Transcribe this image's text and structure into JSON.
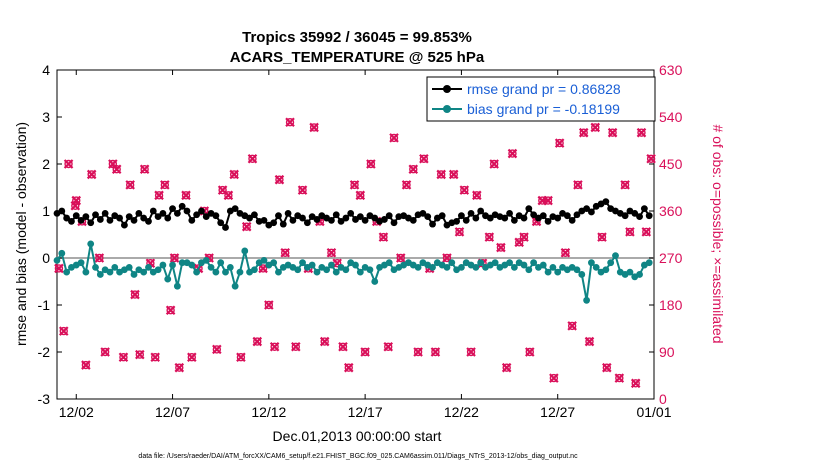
{
  "chart_data": {
    "type": "line",
    "title": "Tropics 35992 / 36045 = 99.853%",
    "subtitle": "ACARS_TEMPERATURE @ 525 hPa",
    "xlabel": "Dec.01,2013 00:00:00 start",
    "ylabel": "rmse and bias (model - observation)",
    "y2label": "# of obs: o=possible; ×=assimilated",
    "footnote": "data file: /Users/raeder/DAI/ATM_forcXX/CAM6_setup/f.e21.FHIST_BGC.f09_025.CAM6assim.011/Diags_NTrS_2013-12/obs_diag_output.nc",
    "xlim": [
      0,
      31
    ],
    "ylim": [
      -3,
      4
    ],
    "y2lim": [
      0,
      630
    ],
    "x_ticks": [
      1,
      6,
      11,
      16,
      21,
      26,
      31
    ],
    "x_tick_labels": [
      "12/02",
      "12/07",
      "12/12",
      "12/17",
      "12/22",
      "12/27",
      "01/01"
    ],
    "y_ticks": [
      -3,
      -2,
      -1,
      0,
      1,
      2,
      3,
      4
    ],
    "y2_ticks": [
      0,
      90,
      180,
      270,
      360,
      450,
      540,
      630
    ],
    "legend": {
      "position": "top-right",
      "entries": [
        "rmse grand pr = 0.86828",
        "bias grand pr = -0.18199"
      ]
    },
    "colors": {
      "rmse": "#000000",
      "bias": "#0f8585",
      "obs": "#d9105a",
      "zero": "#aaaaaa",
      "legend_text": "#1a5fd6"
    },
    "series": [
      {
        "name": "rmse",
        "x": [
          0.0,
          0.25,
          0.5,
          0.75,
          1.0,
          1.25,
          1.5,
          1.75,
          2.0,
          2.25,
          2.5,
          2.75,
          3.0,
          3.25,
          3.5,
          3.75,
          4.0,
          4.25,
          4.5,
          4.75,
          5.0,
          5.25,
          5.5,
          5.75,
          6.0,
          6.25,
          6.5,
          6.75,
          7.0,
          7.25,
          7.5,
          7.75,
          8.0,
          8.25,
          8.5,
          8.75,
          9.0,
          9.25,
          9.5,
          9.75,
          10.0,
          10.25,
          10.5,
          10.75,
          11.0,
          11.25,
          11.5,
          11.75,
          12.0,
          12.25,
          12.5,
          12.75,
          13.0,
          13.25,
          13.5,
          13.75,
          14.0,
          14.25,
          14.5,
          14.75,
          15.0,
          15.25,
          15.5,
          15.75,
          16.0,
          16.25,
          16.5,
          16.75,
          17.0,
          17.25,
          17.5,
          17.75,
          18.0,
          18.25,
          18.5,
          18.75,
          19.0,
          19.25,
          19.5,
          19.75,
          20.0,
          20.25,
          20.5,
          20.75,
          21.0,
          21.25,
          21.5,
          21.75,
          22.0,
          22.25,
          22.5,
          22.75,
          23.0,
          23.25,
          23.5,
          23.75,
          24.0,
          24.25,
          24.5,
          24.75,
          25.0,
          25.25,
          25.5,
          25.75,
          26.0,
          26.25,
          26.5,
          26.75,
          27.0,
          27.25,
          27.5,
          27.75,
          28.0,
          28.25,
          28.5,
          28.75,
          29.0,
          29.25,
          29.5,
          29.75,
          30.0,
          30.25,
          30.5,
          30.75
        ],
        "values": [
          0.95,
          1.0,
          0.85,
          0.78,
          0.9,
          0.8,
          0.88,
          0.75,
          0.92,
          0.82,
          0.95,
          0.8,
          0.9,
          0.85,
          0.7,
          0.88,
          0.8,
          0.95,
          0.85,
          0.78,
          1.0,
          0.88,
          0.95,
          0.85,
          1.05,
          0.95,
          1.1,
          1.0,
          0.8,
          0.92,
          1.0,
          0.88,
          0.95,
          0.9,
          0.75,
          0.65,
          1.0,
          1.05,
          0.95,
          0.9,
          0.85,
          0.92,
          0.78,
          0.8,
          0.7,
          0.75,
          0.9,
          0.72,
          0.95,
          0.8,
          0.9,
          0.85,
          0.75,
          0.88,
          0.82,
          0.9,
          0.85,
          0.8,
          0.92,
          0.78,
          0.85,
          0.95,
          0.82,
          0.88,
          0.8,
          0.9,
          0.85,
          0.78,
          0.82,
          0.9,
          0.75,
          0.88,
          0.9,
          0.85,
          0.8,
          0.92,
          0.95,
          0.88,
          0.72,
          0.85,
          0.9,
          0.7,
          0.75,
          0.78,
          0.9,
          0.8,
          0.95,
          0.85,
          1.0,
          0.9,
          0.85,
          0.92,
          0.88,
          0.85,
          0.95,
          0.8,
          0.9,
          0.85,
          1.05,
          0.92,
          0.85,
          0.9,
          0.78,
          0.88,
          0.85,
          0.95,
          0.9,
          0.8,
          0.92,
          1.0,
          1.05,
          0.98,
          1.1,
          1.15,
          1.2,
          1.05,
          1.0,
          0.95,
          0.9,
          1.0,
          0.95,
          0.88,
          1.05,
          0.9
        ]
      },
      {
        "name": "bias",
        "x": [
          0.0,
          0.25,
          0.5,
          0.75,
          1.0,
          1.25,
          1.5,
          1.75,
          2.0,
          2.25,
          2.5,
          2.75,
          3.0,
          3.25,
          3.5,
          3.75,
          4.0,
          4.25,
          4.5,
          4.75,
          5.0,
          5.25,
          5.5,
          5.75,
          6.0,
          6.25,
          6.5,
          6.75,
          7.0,
          7.25,
          7.5,
          7.75,
          8.0,
          8.25,
          8.5,
          8.75,
          9.0,
          9.25,
          9.5,
          9.75,
          10.0,
          10.25,
          10.5,
          10.75,
          11.0,
          11.25,
          11.5,
          11.75,
          12.0,
          12.25,
          12.5,
          12.75,
          13.0,
          13.25,
          13.5,
          13.75,
          14.0,
          14.25,
          14.5,
          14.75,
          15.0,
          15.25,
          15.5,
          15.75,
          16.0,
          16.25,
          16.5,
          16.75,
          17.0,
          17.25,
          17.5,
          17.75,
          18.0,
          18.25,
          18.5,
          18.75,
          19.0,
          19.25,
          19.5,
          19.75,
          20.0,
          20.25,
          20.5,
          20.75,
          21.0,
          21.25,
          21.5,
          21.75,
          22.0,
          22.25,
          22.5,
          22.75,
          23.0,
          23.25,
          23.5,
          23.75,
          24.0,
          24.25,
          24.5,
          24.75,
          25.0,
          25.25,
          25.5,
          25.75,
          26.0,
          26.25,
          26.5,
          26.75,
          27.0,
          27.25,
          27.5,
          27.75,
          28.0,
          28.25,
          28.5,
          28.75,
          29.0,
          29.25,
          29.5,
          29.75,
          30.0,
          30.25,
          30.5,
          30.75
        ],
        "values": [
          -0.05,
          0.1,
          -0.3,
          -0.2,
          -0.15,
          -0.1,
          -0.3,
          0.3,
          -0.2,
          -0.35,
          -0.25,
          -0.3,
          -0.2,
          -0.3,
          -0.25,
          -0.2,
          -0.35,
          -0.25,
          -0.3,
          -0.2,
          -0.3,
          -0.25,
          -0.15,
          -0.45,
          -0.15,
          -0.6,
          -0.1,
          -0.1,
          -0.15,
          -0.3,
          -0.1,
          -0.05,
          -0.2,
          -0.3,
          -0.1,
          -0.3,
          -0.2,
          -0.6,
          -0.3,
          0.15,
          -0.3,
          -0.25,
          -0.1,
          -0.05,
          -0.15,
          -0.1,
          -0.3,
          -0.2,
          -0.15,
          -0.2,
          -0.25,
          -0.1,
          -0.2,
          -0.15,
          -0.3,
          -0.2,
          -0.25,
          -0.15,
          -0.3,
          -0.2,
          -0.25,
          -0.1,
          -0.15,
          -0.3,
          -0.2,
          -0.25,
          -0.5,
          -0.2,
          -0.15,
          -0.1,
          -0.25,
          -0.2,
          -0.15,
          -0.1,
          -0.15,
          -0.2,
          -0.1,
          -0.15,
          -0.2,
          -0.1,
          -0.15,
          -0.2,
          -0.1,
          -0.25,
          -0.2,
          -0.1,
          -0.15,
          -0.2,
          -0.1,
          -0.2,
          -0.15,
          -0.1,
          -0.2,
          -0.15,
          -0.1,
          -0.2,
          -0.1,
          -0.15,
          -0.25,
          -0.1,
          -0.2,
          -0.15,
          -0.3,
          -0.2,
          -0.3,
          -0.2,
          -0.25,
          -0.2,
          -0.25,
          -0.35,
          -0.9,
          -0.1,
          -0.2,
          -0.3,
          -0.25,
          -0.1,
          0.05,
          -0.3,
          -0.35,
          -0.3,
          -0.4,
          -0.35,
          -0.15,
          -0.1
        ]
      }
    ],
    "obs_possible_markers": {
      "x": [
        0.1,
        0.35,
        0.6,
        0.95,
        1.0,
        1.3,
        1.5,
        1.8,
        2.2,
        2.5,
        2.9,
        3.1,
        3.45,
        3.8,
        4.05,
        4.3,
        4.55,
        4.85,
        5.1,
        5.3,
        5.6,
        5.9,
        6.1,
        6.35,
        6.7,
        7.0,
        7.35,
        7.65,
        7.9,
        8.3,
        8.6,
        8.9,
        9.2,
        9.55,
        9.85,
        10.15,
        10.4,
        10.7,
        11.0,
        11.3,
        11.55,
        11.85,
        12.1,
        12.4,
        12.75,
        13.05,
        13.35,
        13.65,
        13.9,
        14.25,
        14.55,
        14.85,
        15.15,
        15.45,
        15.75,
        16.0,
        16.3,
        16.6,
        16.95,
        17.2,
        17.5,
        17.85,
        18.15,
        18.5,
        18.75,
        19.05,
        19.35,
        19.65,
        19.95,
        20.25,
        20.6,
        20.9,
        21.15,
        21.5,
        21.8,
        22.1,
        22.45,
        22.7,
        23.05,
        23.35,
        23.65,
        24.0,
        24.25,
        24.55,
        24.9,
        25.2,
        25.5,
        25.8,
        26.1,
        26.4,
        26.75,
        27.05,
        27.35,
        27.65,
        27.95,
        28.3,
        28.55,
        28.85,
        29.2,
        29.5,
        29.75,
        30.05,
        30.35,
        30.6,
        30.85
      ],
      "values": [
        250,
        130,
        450,
        370,
        380,
        340,
        65,
        430,
        270,
        90,
        450,
        440,
        80,
        410,
        200,
        85,
        440,
        260,
        80,
        390,
        410,
        170,
        270,
        60,
        390,
        80,
        250,
        360,
        270,
        95,
        400,
        390,
        430,
        80,
        330,
        460,
        110,
        250,
        180,
        100,
        420,
        280,
        530,
        100,
        400,
        250,
        520,
        340,
        110,
        280,
        260,
        100,
        60,
        410,
        390,
        90,
        450,
        340,
        310,
        100,
        500,
        270,
        410,
        440,
        90,
        460,
        250,
        90,
        430,
        270,
        430,
        320,
        400,
        90,
        390,
        260,
        310,
        450,
        290,
        60,
        470,
        300,
        310,
        90,
        340,
        380,
        380,
        40,
        490,
        280,
        140,
        410,
        510,
        110,
        520,
        310,
        60,
        510,
        40,
        410,
        320,
        30,
        510,
        320,
        460
      ]
    }
  }
}
